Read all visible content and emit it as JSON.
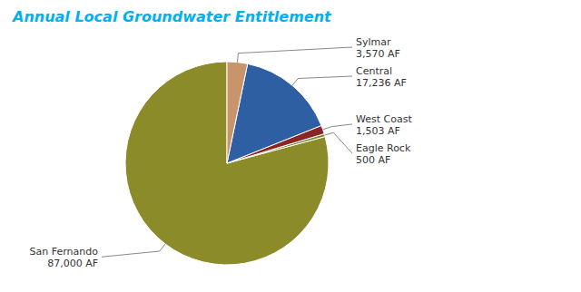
{
  "chart_data": {
    "type": "pie",
    "title": "Annual Local Groundwater Entitlement",
    "categories": [
      "San Fernando",
      "Eagle Rock",
      "West Coast",
      "Central",
      "Sylmar"
    ],
    "values": [
      87000,
      500,
      1503,
      17236,
      3570
    ],
    "value_labels": [
      "87,000 AF",
      "500 AF",
      "1,503 AF",
      "17,236 AF",
      "3,570 AF"
    ],
    "colors": [
      "#8B8B2A",
      "#7A8C2A",
      "#8B2525",
      "#2E5FA3",
      "#C8956A"
    ],
    "data_labels": true
  }
}
